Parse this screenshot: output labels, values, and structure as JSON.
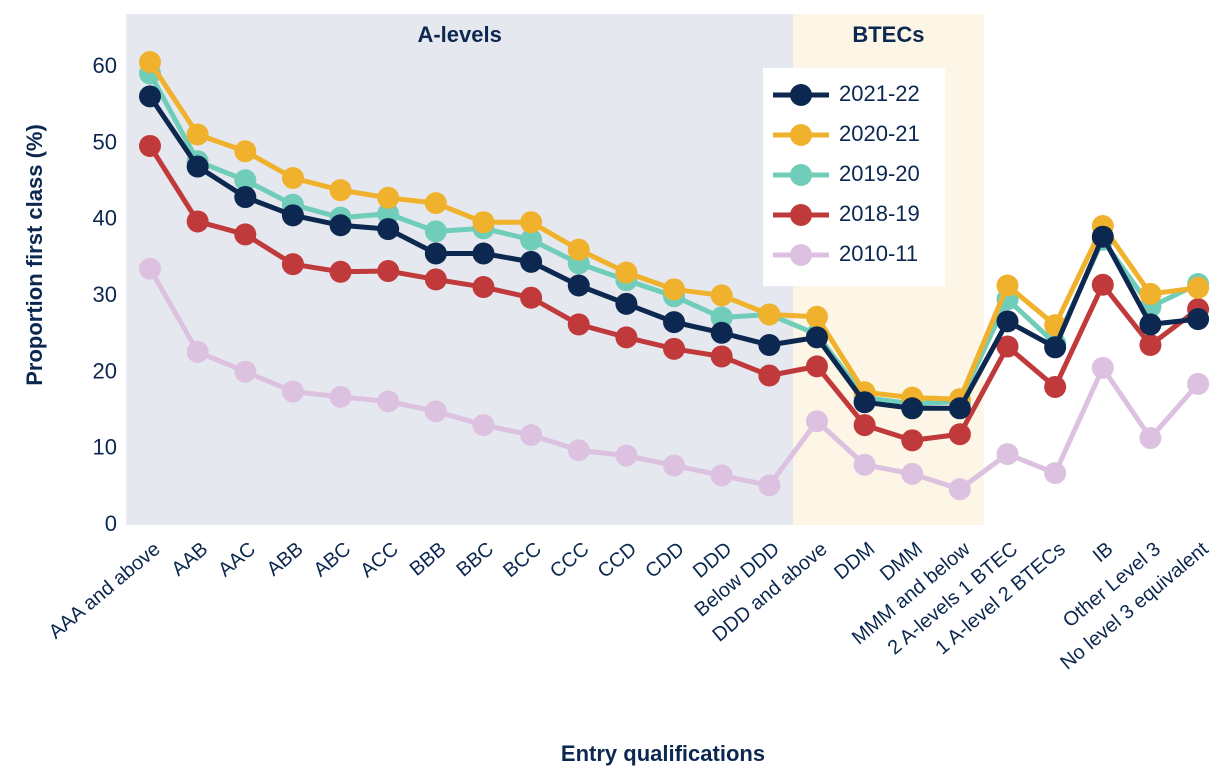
{
  "chart_data": {
    "type": "line",
    "x_label": "Entry qualifications",
    "y_label": "Proportion first class (%)",
    "categories": [
      "AAA and above",
      "AAB",
      "AAC",
      "ABB",
      "ABC",
      "ACC",
      "BBB",
      "BBC",
      "BCC",
      "CCC",
      "CCD",
      "CDD",
      "DDD",
      "Below DDD",
      "DDD and above",
      "DDM",
      "DMM",
      "MMM and below",
      "2 A-levels 1 BTEC",
      "1 A-level 2 BTECs",
      "IB",
      "Other Level 3",
      "No level 3 equivalent"
    ],
    "regions": [
      {
        "label": "A-levels",
        "first": "AAA and above",
        "last": "Below DDD",
        "color": "#e6e8ef"
      },
      {
        "label": "BTECs",
        "first": "DDD and above",
        "last": "MMM and below",
        "color": "#fdf5e6"
      }
    ],
    "series": [
      {
        "name": "2021-22",
        "color": "#0c2850",
        "values": [
          56.2,
          47.0,
          43.0,
          40.6,
          39.3,
          38.8,
          35.6,
          35.6,
          34.5,
          31.4,
          29.0,
          26.6,
          25.2,
          23.6,
          24.6,
          16.1,
          15.3,
          15.3,
          26.7,
          23.3,
          37.8,
          26.3,
          27.0
        ]
      },
      {
        "name": "2020-21",
        "color": "#f0b22c",
        "values": [
          60.7,
          51.2,
          49.0,
          45.5,
          43.9,
          42.9,
          42.2,
          39.7,
          39.7,
          36.1,
          33.1,
          30.9,
          30.1,
          27.6,
          27.3,
          17.4,
          16.7,
          16.5,
          31.4,
          26.2,
          39.2,
          30.3,
          31.1
        ]
      },
      {
        "name": "2019-20",
        "color": "#6fcdb9",
        "values": [
          59.2,
          47.7,
          45.2,
          42.0,
          40.3,
          40.8,
          38.5,
          38.9,
          37.4,
          34.3,
          32.1,
          30.0,
          27.2,
          27.6,
          25.0,
          16.7,
          15.9,
          16.2,
          29.6,
          23.8,
          37.4,
          28.6,
          31.6
        ]
      },
      {
        "name": "2018-19",
        "color": "#c0393b",
        "values": [
          49.7,
          39.8,
          38.1,
          34.2,
          33.2,
          33.3,
          32.2,
          31.2,
          29.8,
          26.3,
          24.6,
          23.1,
          22.1,
          19.6,
          20.8,
          13.1,
          11.1,
          11.9,
          23.4,
          18.1,
          31.5,
          23.6,
          28.3
        ]
      },
      {
        "name": "2010-11",
        "color": "#dcc2e0",
        "values": [
          33.6,
          22.7,
          20.1,
          17.5,
          16.8,
          16.2,
          14.9,
          13.1,
          11.8,
          9.8,
          9.1,
          7.8,
          6.5,
          5.2,
          13.6,
          7.9,
          6.7,
          4.7,
          9.3,
          6.8,
          20.6,
          11.4,
          18.5
        ]
      }
    ],
    "ylim": [
      0,
      67
    ],
    "yticks": [
      0,
      10,
      20,
      30,
      40,
      50,
      60
    ],
    "grid": false,
    "legend": "upper-right"
  }
}
